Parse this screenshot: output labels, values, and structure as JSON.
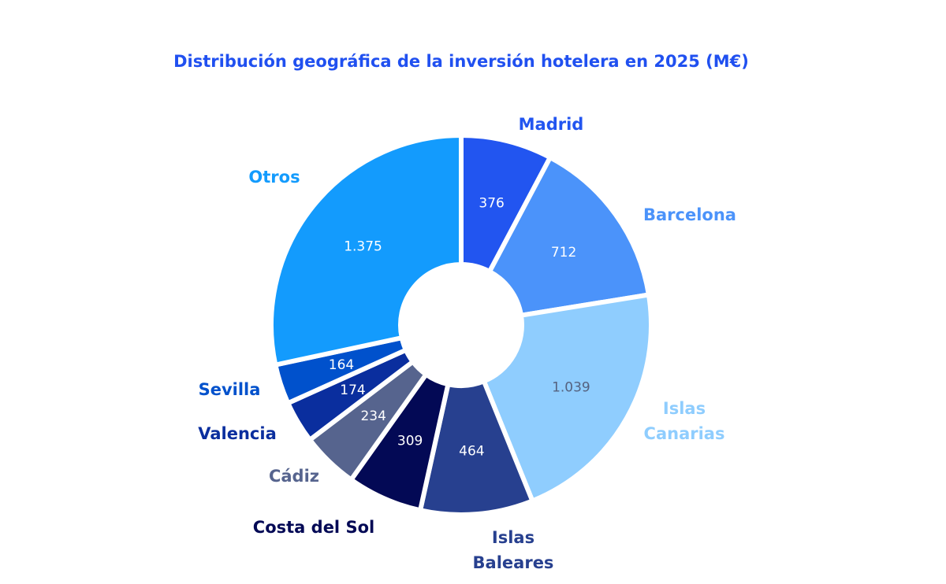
{
  "chart_data": {
    "type": "pie",
    "variant": "donut",
    "title": "Distribución geográfica de la inversión hotelera en 2025 (M€)",
    "legend": "none (direct labels outside slices)",
    "start": "top, clockwise",
    "slices": [
      {
        "name": "Madrid",
        "value": 376,
        "label": "376",
        "color": "#2255f0",
        "label_color": "#ffffff"
      },
      {
        "name": "Barcelona",
        "value": 712,
        "label": "712",
        "color": "#4b93fa",
        "label_color": "#ffffff"
      },
      {
        "name": "Islas Canarias",
        "value": 1039,
        "label": "1.039",
        "color": "#8fcdfe",
        "label_color": "#55627f"
      },
      {
        "name": "Islas Baleares",
        "value": 464,
        "label": "464",
        "color": "#27408f",
        "label_color": "#ffffff"
      },
      {
        "name": "Costa del Sol",
        "value": 309,
        "label": "309",
        "color": "#030955",
        "label_color": "#ffffff"
      },
      {
        "name": "Cádiz",
        "value": 234,
        "label": "234",
        "color": "#56648e",
        "label_color": "#ffffff"
      },
      {
        "name": "Valencia",
        "value": 174,
        "label": "174",
        "color": "#0a2e9e",
        "label_color": "#ffffff"
      },
      {
        "name": "Sevilla",
        "value": 164,
        "label": "164",
        "color": "#0051cc",
        "label_color": "#ffffff"
      },
      {
        "name": "Otros",
        "value": 1375,
        "label": "1.375",
        "color": "#139bfd",
        "label_color": "#ffffff"
      }
    ]
  }
}
